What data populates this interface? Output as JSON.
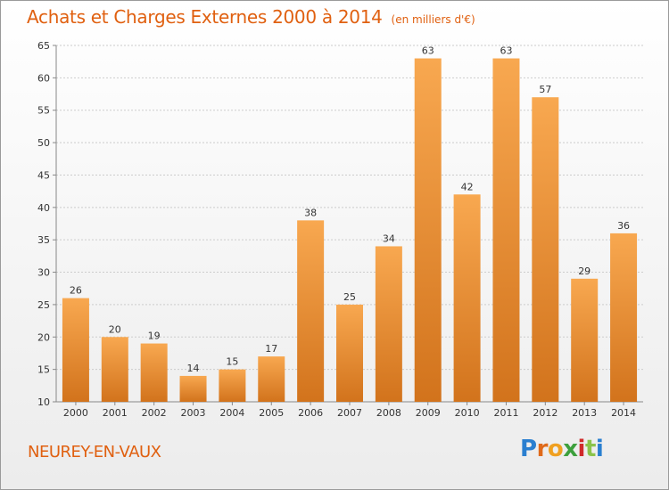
{
  "title": "Achats et Charges Externes 2000 à 2014",
  "subtitle": "(en milliers d'€)",
  "place": "NEUREY-EN-VAUX",
  "logo": {
    "text": "Proxiti",
    "colors": [
      "#2a7fd0",
      "#e06a1a",
      "#f0a020",
      "#3da03d",
      "#d02a2a",
      "#8bc34a"
    ]
  },
  "colors": {
    "bar_top": "#f8a850",
    "bar_bottom": "#d2731c",
    "title": "#e06010",
    "axis": "#888888",
    "grid": "#cccccc"
  },
  "chart_data": {
    "type": "bar",
    "title": "Achats et Charges Externes 2000 à 2014",
    "subtitle": "(en milliers d'€)",
    "xlabel": "",
    "ylabel": "",
    "categories": [
      "2000",
      "2001",
      "2002",
      "2003",
      "2004",
      "2005",
      "2006",
      "2007",
      "2008",
      "2009",
      "2010",
      "2011",
      "2012",
      "2013",
      "2014"
    ],
    "values": [
      26,
      20,
      19,
      14,
      15,
      17,
      38,
      25,
      34,
      63,
      42,
      63,
      57,
      29,
      36
    ],
    "ylim": [
      10,
      65
    ],
    "yticks": [
      10,
      15,
      20,
      25,
      30,
      35,
      40,
      45,
      50,
      55,
      60,
      65
    ],
    "grid": true,
    "data_labels": true
  }
}
